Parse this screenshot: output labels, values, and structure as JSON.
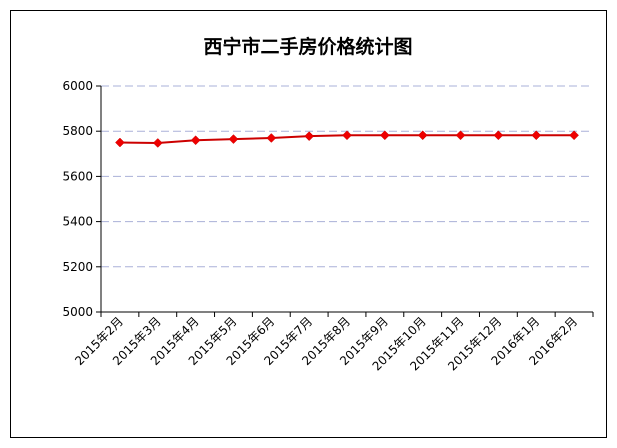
{
  "chart_data": {
    "type": "line",
    "title": "西宁市二手房价格统计图",
    "xlabel": "",
    "ylabel": "",
    "categories": [
      "2015年2月",
      "2015年3月",
      "2015年4月",
      "2015年5月",
      "2015年6月",
      "2015年7月",
      "2015年8月",
      "2015年9月",
      "2015年10月",
      "2015年11月",
      "2015年12月",
      "2016年1月",
      "2016年2月"
    ],
    "series": [
      {
        "values": [
          5750,
          5748,
          5760,
          5765,
          5770,
          5778,
          5782,
          5782,
          5782,
          5782,
          5782,
          5782,
          5782
        ]
      }
    ],
    "ylim": [
      5000,
      6000
    ],
    "yticks": [
      "5000",
      "5200",
      "5400",
      "5600",
      "5800",
      "6000"
    ],
    "grid": true,
    "legend": "none",
    "colors": {
      "line": "#cc0000",
      "marker": "#ee0000",
      "grid": "#aab0d8"
    }
  }
}
